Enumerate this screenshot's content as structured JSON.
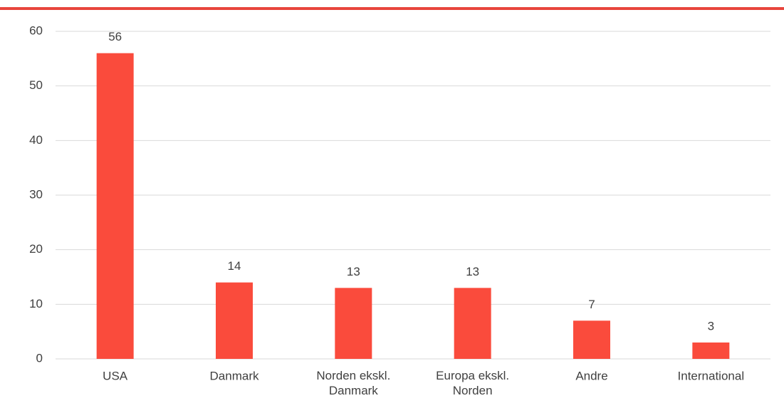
{
  "chart_data": {
    "type": "bar",
    "categories": [
      "USA",
      "Danmark",
      "Norden ekskl. Danmark",
      "Europa ekskl. Norden",
      "Andre",
      "International"
    ],
    "values": [
      56,
      14,
      13,
      13,
      7,
      3
    ],
    "color": "#fa4b3c",
    "ylim": [
      0,
      60
    ],
    "yticks": [
      0,
      10,
      20,
      30,
      40,
      50,
      60
    ],
    "grid": true
  }
}
